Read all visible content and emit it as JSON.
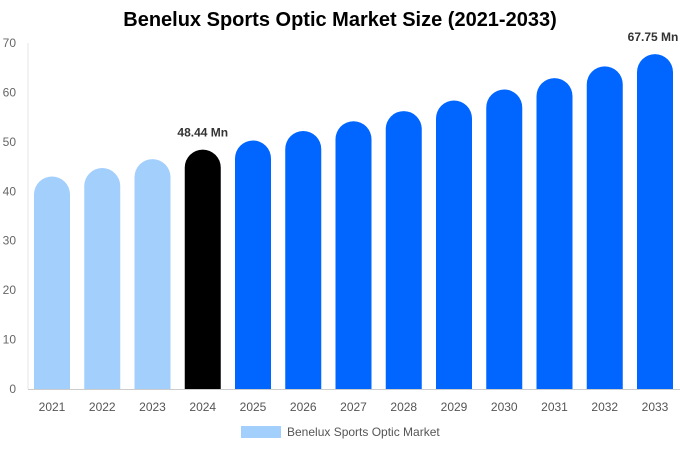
{
  "chart_data": {
    "type": "bar",
    "title": "Benelux Sports Optic Market Size (2021-2033)",
    "categories": [
      "2021",
      "2022",
      "2023",
      "2024",
      "2025",
      "2026",
      "2027",
      "2028",
      "2029",
      "2030",
      "2031",
      "2032",
      "2033"
    ],
    "series": [
      {
        "name": "Benelux Sports Optic Market",
        "values": [
          43.0,
          44.7,
          46.5,
          48.44,
          50.28,
          52.19,
          54.17,
          56.23,
          58.37,
          60.59,
          62.89,
          65.28,
          67.75
        ]
      }
    ],
    "data_labels": [
      {
        "category": "2024",
        "text": "48.44 Mn"
      },
      {
        "category": "2033",
        "text": "67.75 Mn"
      }
    ],
    "ylim": [
      0,
      70
    ],
    "yticks": [
      0,
      10,
      20,
      30,
      40,
      50,
      60,
      70
    ],
    "xlabel": "",
    "ylabel": "",
    "grid": false,
    "legend_placement": "bottom",
    "colors": {
      "historical": "#a3cffc",
      "base_year": "#000000",
      "forecast": "#0066ff"
    }
  }
}
